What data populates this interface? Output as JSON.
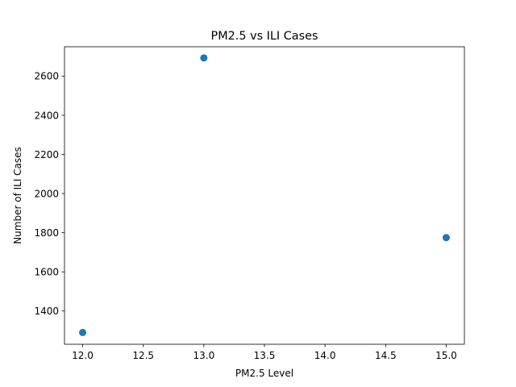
{
  "chart_data": {
    "type": "scatter",
    "title": "PM2.5 vs ILI Cases",
    "xlabel": "PM2.5 Level",
    "ylabel": "Number of ILI Cases",
    "xlim": [
      11.85,
      15.15
    ],
    "ylim": [
      1230,
      2750
    ],
    "grid": false,
    "x_ticks": [
      12.0,
      12.5,
      13.0,
      13.5,
      14.0,
      14.5,
      15.0
    ],
    "x_tick_labels": [
      "12.0",
      "12.5",
      "13.0",
      "13.5",
      "14.0",
      "14.5",
      "15.0"
    ],
    "y_ticks": [
      1400,
      1600,
      1800,
      2000,
      2200,
      2400,
      2600
    ],
    "y_tick_labels": [
      "1400",
      "1600",
      "1800",
      "2000",
      "2200",
      "2400",
      "2600"
    ],
    "points": [
      {
        "x": 12.0,
        "y": 1290
      },
      {
        "x": 13.0,
        "y": 2693
      },
      {
        "x": 15.0,
        "y": 1775
      }
    ],
    "marker_color": "#1f77b4"
  }
}
